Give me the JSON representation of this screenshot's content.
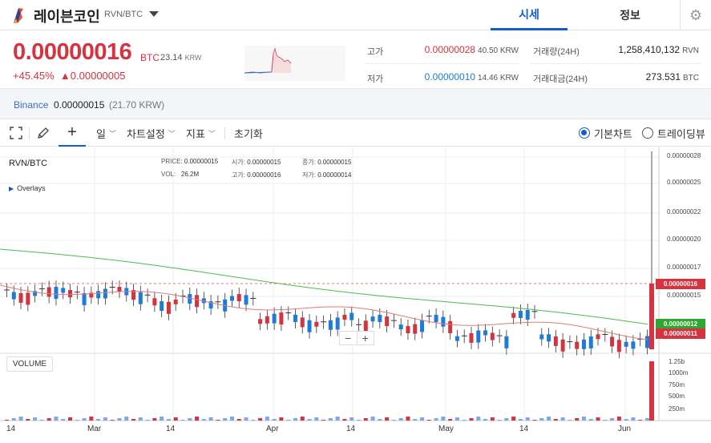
{
  "header": {
    "coin_name": "레이븐코인",
    "pair": "RVN/BTC",
    "tabs": [
      {
        "label": "시세"
      },
      {
        "label": "정보"
      }
    ],
    "settings_icon": "gear-icon"
  },
  "summary": {
    "price": "0.00000016",
    "price_unit": "BTC",
    "price_krw": "23.14",
    "krw_unit": "KRW",
    "change_pct": "+45.45%",
    "change_abs": "▲0.00000005",
    "high_label": "고가",
    "high_value": "0.00000028",
    "high_krw": "40.50 KRW",
    "low_label": "저가",
    "low_value": "0.00000010",
    "low_krw": "14.46 KRW",
    "volume_label": "거래량(24H)",
    "volume_value": "1,258,410,132",
    "volume_unit": "RVN",
    "amount_label": "거래대금(24H)",
    "amount_value": "273.531",
    "amount_unit": "BTC"
  },
  "exchange": {
    "name": "Binance",
    "price": "0.00000015",
    "krw": "(21.70 KRW)"
  },
  "toolbar": {
    "interval": "일",
    "chart_settings": "차트설정",
    "indicators": "지표",
    "reset": "초기화",
    "basic_chart": "기본차트",
    "tradingview": "트레이딩뷰",
    "selected_chart": "기본차트"
  },
  "chart": {
    "pair": "RVN/BTC",
    "overlays": "Overlays",
    "ohlc": {
      "price_k": "PRICE:",
      "price_v": "0.00000015",
      "open_k": "시가:",
      "open_v": "0.00000015",
      "close_k": "종가:",
      "close_v": "0.00000015",
      "vol_k": "VOL:",
      "vol_v": "26.2M",
      "high_k": "고가:",
      "high_v": "0.00000016",
      "low_k": "저가:",
      "low_v": "0.00000014"
    },
    "volume_label": "VOLUME",
    "zoom_out": "−",
    "zoom_in": "+",
    "y_ticks": [
      "0.00000028",
      "0.00000025",
      "0.00000022",
      "0.00000020",
      "0.00000017",
      "0.00000015"
    ],
    "tags": [
      {
        "text": "0.00000016",
        "color": "#d4333f"
      },
      {
        "text": "0.00000012",
        "color": "#2fa72f"
      },
      {
        "text": "0.00000011",
        "color": "#d4333f"
      }
    ],
    "x_ticks": [
      "14",
      "Mar",
      "14",
      "Apr",
      "14",
      "May",
      "14",
      "Jun"
    ],
    "vol_ticks": [
      "1.25b",
      "1000m",
      "750m",
      "500m",
      "250m"
    ]
  },
  "colors": {
    "up": "#d4333f",
    "down": "#1e7bd9",
    "accent": "#115dcb",
    "ma_green": "#4cbb4c",
    "ma_red": "#e07a7a"
  }
}
